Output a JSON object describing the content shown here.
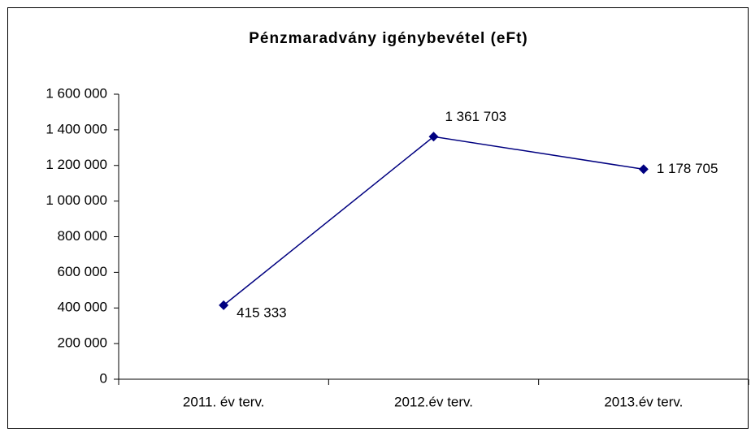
{
  "chart_data": {
    "type": "line",
    "title": "Pénzmaradvány igénybevétel (eFt)",
    "categories": [
      "2011. év terv.",
      "2012.év terv.",
      "2013.év terv."
    ],
    "series": [
      {
        "name": "Pénzmaradvány igénybevétel",
        "color": "#000080",
        "values": [
          415333,
          1361703,
          1178705
        ],
        "value_labels": [
          "415 333",
          "1 361 703",
          "1 178 705"
        ]
      }
    ],
    "ylim": [
      0,
      1600000
    ],
    "yticks": [
      0,
      {
        "value": 200000,
        "label": "200 000"
      },
      {
        "value": 400000,
        "label": "400 000"
      },
      {
        "value": 600000,
        "label": "600 000"
      },
      {
        "value": 800000,
        "label": "800 000"
      },
      {
        "value": 1000000,
        "label": "1 000 000"
      },
      {
        "value": 1200000,
        "label": "1 200 000"
      },
      {
        "value": 1400000,
        "label": "1 400 000"
      },
      {
        "value": 1600000,
        "label": "1 600 000"
      }
    ],
    "grid": false,
    "legend": false
  }
}
